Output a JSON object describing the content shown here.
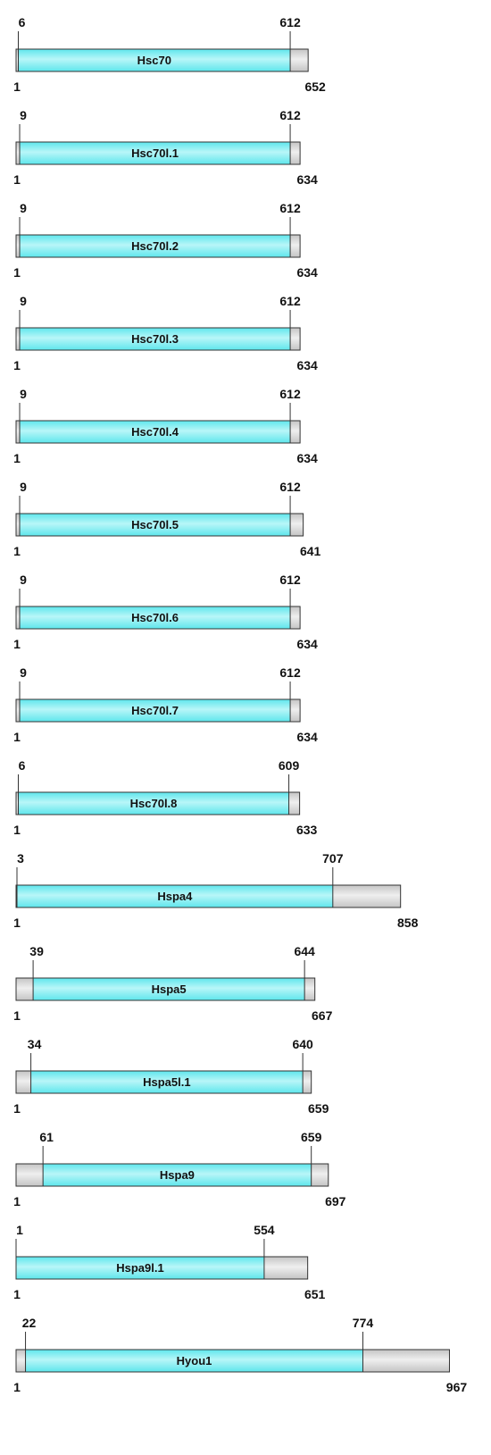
{
  "colors": {
    "domain_fill": "#5ee6ec",
    "domain_highlight": "#b8f6f8",
    "flank_fill": "#c4c4c4",
    "flank_highlight": "#efefef",
    "outline": "#333333",
    "text": "#111111"
  },
  "chart_data": {
    "type": "domain-map",
    "proteins": [
      {
        "name": "Hsc70",
        "start": "1",
        "end": "652",
        "domain_start": "6",
        "domain_end": "612"
      },
      {
        "name": "Hsc70l.1",
        "start": "1",
        "end": "634",
        "domain_start": "9",
        "domain_end": "612"
      },
      {
        "name": "Hsc70l.2",
        "start": "1",
        "end": "634",
        "domain_start": "9",
        "domain_end": "612"
      },
      {
        "name": "Hsc70l.3",
        "start": "1",
        "end": "634",
        "domain_start": "9",
        "domain_end": "612"
      },
      {
        "name": "Hsc70l.4",
        "start": "1",
        "end": "634",
        "domain_start": "9",
        "domain_end": "612"
      },
      {
        "name": "Hsc70l.5",
        "start": "1",
        "end": "641",
        "domain_start": "9",
        "domain_end": "612"
      },
      {
        "name": "Hsc70l.6",
        "start": "1",
        "end": "634",
        "domain_start": "9",
        "domain_end": "612"
      },
      {
        "name": "Hsc70l.7",
        "start": "1",
        "end": "634",
        "domain_start": "9",
        "domain_end": "612"
      },
      {
        "name": "Hsc70l.8",
        "start": "1",
        "end": "633",
        "domain_start": "6",
        "domain_end": "609"
      },
      {
        "name": "Hspa4",
        "start": "1",
        "end": "858",
        "domain_start": "3",
        "domain_end": "707"
      },
      {
        "name": "Hspa5",
        "start": "1",
        "end": "667",
        "domain_start": "39",
        "domain_end": "644"
      },
      {
        "name": "Hspa5l.1",
        "start": "1",
        "end": "659",
        "domain_start": "34",
        "domain_end": "640"
      },
      {
        "name": "Hspa9",
        "start": "1",
        "end": "697",
        "domain_start": "61",
        "domain_end": "659"
      },
      {
        "name": "Hspa9l.1",
        "start": "1",
        "end": "651",
        "domain_start": "1",
        "domain_end": "554"
      },
      {
        "name": "Hyou1",
        "start": "1",
        "end": "967",
        "domain_start": "22",
        "domain_end": "774"
      }
    ]
  }
}
